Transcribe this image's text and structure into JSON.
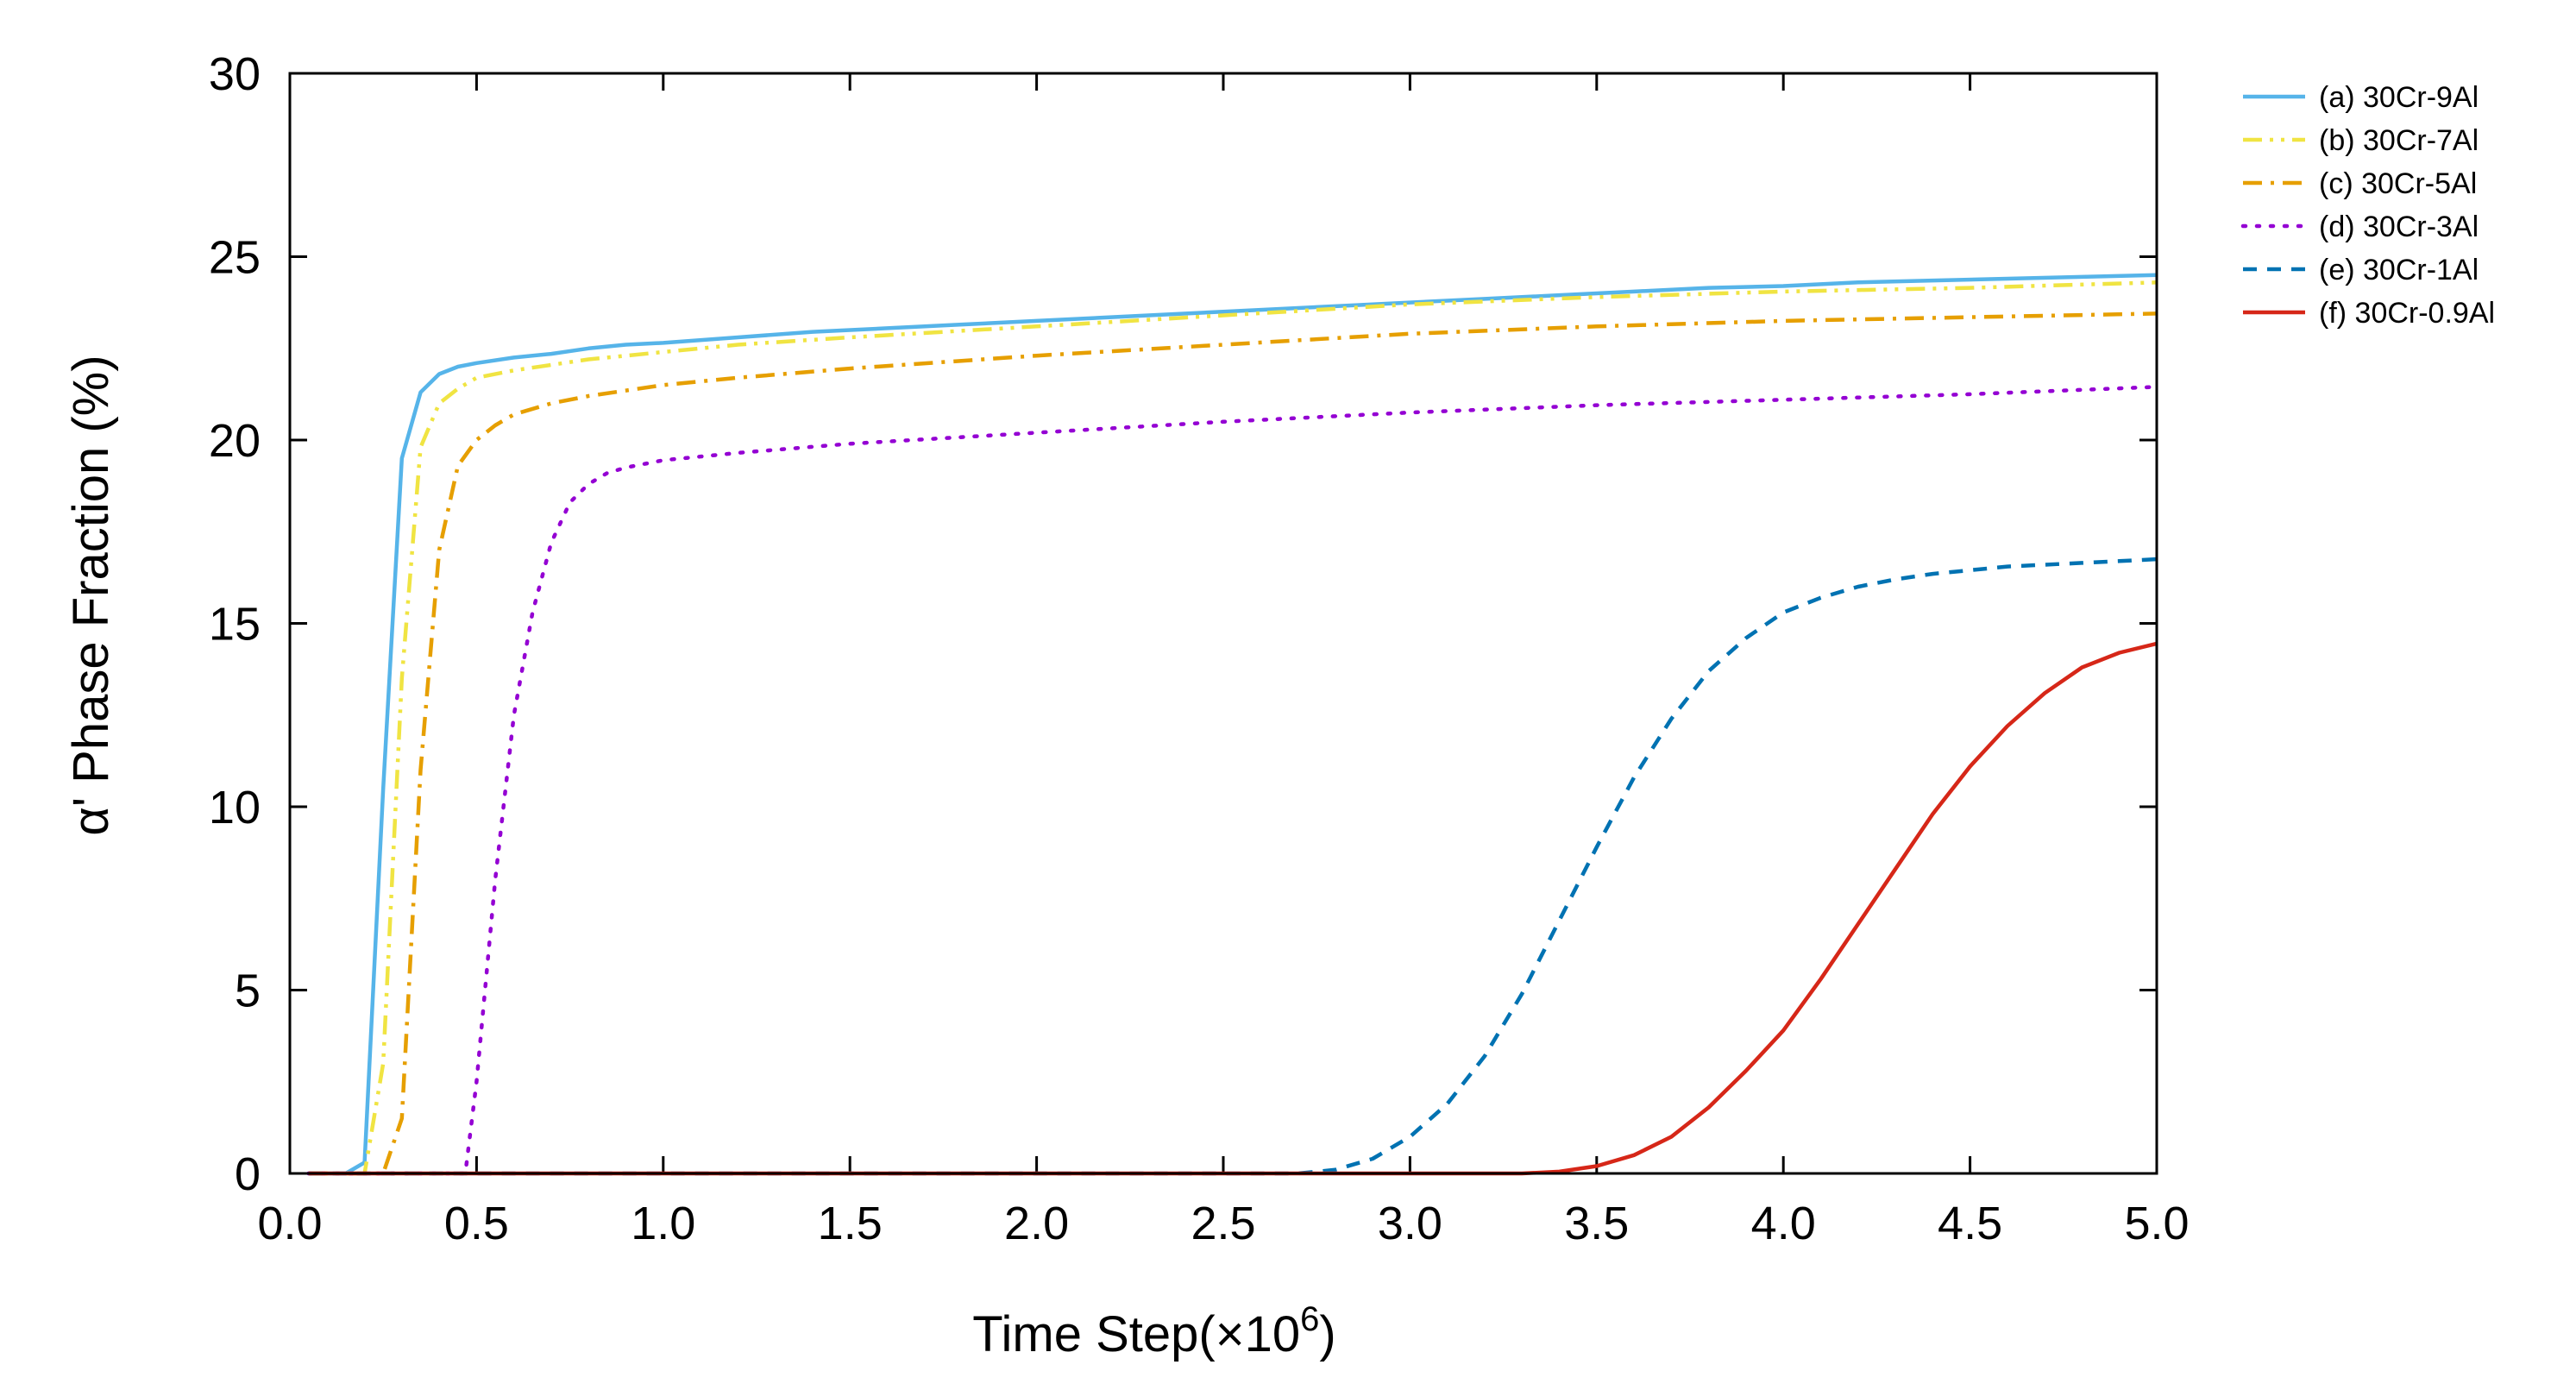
{
  "chart_data": {
    "type": "line",
    "title": "",
    "xlabel": "Time Step(×10",
    "xlabel_exponent": "6",
    "xlabel_close": ")",
    "ylabel": "α' Phase Fraction (%)",
    "xlim": [
      0.0,
      5.0
    ],
    "ylim": [
      0,
      30
    ],
    "xticks": [
      0.0,
      0.5,
      1.0,
      1.5,
      2.0,
      2.5,
      3.0,
      3.5,
      4.0,
      4.5,
      5.0
    ],
    "xtick_labels": [
      "0.0",
      "0.5",
      "1.0",
      "1.5",
      "2.0",
      "2.5",
      "3.0",
      "3.5",
      "4.0",
      "4.5",
      "5.0"
    ],
    "yticks": [
      0,
      5,
      10,
      15,
      20,
      25,
      30
    ],
    "ytick_labels": [
      "0",
      "5",
      "10",
      "15",
      "20",
      "25",
      "30"
    ],
    "grid": false,
    "legend_position": "outside-top-right",
    "series": [
      {
        "name": "(a) 30Cr-9Al",
        "color": "#56B4E9",
        "style": "solid",
        "x": [
          0.05,
          0.15,
          0.2,
          0.25,
          0.3,
          0.35,
          0.4,
          0.45,
          0.5,
          0.6,
          0.7,
          0.8,
          0.9,
          1.0,
          1.2,
          1.4,
          1.6,
          1.8,
          2.0,
          2.2,
          2.4,
          2.6,
          2.8,
          3.0,
          3.2,
          3.4,
          3.6,
          3.8,
          4.0,
          4.2,
          4.4,
          4.6,
          4.8,
          5.0
        ],
        "y": [
          0,
          0,
          0.3,
          10.5,
          19.5,
          21.3,
          21.8,
          22.0,
          22.1,
          22.25,
          22.35,
          22.5,
          22.6,
          22.65,
          22.8,
          22.95,
          23.05,
          23.15,
          23.25,
          23.35,
          23.45,
          23.55,
          23.65,
          23.75,
          23.85,
          23.95,
          24.05,
          24.15,
          24.2,
          24.3,
          24.35,
          24.4,
          24.45,
          24.5
        ]
      },
      {
        "name": "(b) 30Cr-7Al",
        "color": "#F0E442",
        "style": "dash-dot-dot",
        "x": [
          0.05,
          0.2,
          0.25,
          0.3,
          0.35,
          0.4,
          0.45,
          0.5,
          0.6,
          0.7,
          0.8,
          1.0,
          1.2,
          1.5,
          2.0,
          2.5,
          3.0,
          3.5,
          4.0,
          4.5,
          5.0
        ],
        "y": [
          0,
          0,
          3.0,
          13.5,
          19.8,
          21.0,
          21.4,
          21.7,
          21.9,
          22.05,
          22.2,
          22.4,
          22.6,
          22.8,
          23.1,
          23.4,
          23.7,
          23.9,
          24.05,
          24.15,
          24.3
        ]
      },
      {
        "name": "(c) 30Cr-5Al",
        "color": "#E69F00",
        "style": "dash-dot",
        "x": [
          0.05,
          0.25,
          0.3,
          0.35,
          0.4,
          0.45,
          0.5,
          0.55,
          0.6,
          0.7,
          0.8,
          1.0,
          1.2,
          1.5,
          2.0,
          2.5,
          3.0,
          3.5,
          4.0,
          4.5,
          5.0
        ],
        "y": [
          0,
          0,
          1.5,
          11.0,
          17.0,
          19.3,
          20.0,
          20.4,
          20.7,
          21.0,
          21.2,
          21.5,
          21.7,
          21.95,
          22.3,
          22.6,
          22.9,
          23.1,
          23.25,
          23.35,
          23.45
        ]
      },
      {
        "name": "(d) 30Cr-3Al",
        "color": "#9400D3",
        "style": "dotted",
        "x": [
          0.05,
          0.47,
          0.5,
          0.55,
          0.6,
          0.65,
          0.7,
          0.75,
          0.8,
          0.85,
          0.9,
          1.0,
          1.2,
          1.5,
          2.0,
          2.5,
          3.0,
          3.5,
          4.0,
          4.5,
          5.0
        ],
        "y": [
          0,
          0,
          2.5,
          8.0,
          12.5,
          15.3,
          17.2,
          18.3,
          18.8,
          19.1,
          19.25,
          19.45,
          19.65,
          19.9,
          20.2,
          20.5,
          20.75,
          20.95,
          21.1,
          21.25,
          21.45
        ]
      },
      {
        "name": "(e) 30Cr-1Al",
        "color": "#0072B2",
        "style": "dashed",
        "x": [
          0.05,
          2.7,
          2.8,
          2.9,
          3.0,
          3.1,
          3.2,
          3.3,
          3.4,
          3.5,
          3.6,
          3.7,
          3.8,
          3.9,
          4.0,
          4.1,
          4.2,
          4.3,
          4.4,
          4.5,
          4.6,
          4.7,
          4.8,
          4.9,
          5.0
        ],
        "y": [
          0,
          0,
          0.1,
          0.4,
          1.0,
          1.9,
          3.2,
          4.9,
          6.9,
          8.9,
          10.8,
          12.4,
          13.7,
          14.6,
          15.3,
          15.7,
          16.0,
          16.2,
          16.35,
          16.45,
          16.55,
          16.6,
          16.65,
          16.7,
          16.75
        ]
      },
      {
        "name": "(f) 30Cr-0.9Al",
        "color": "#D62718",
        "style": "solid",
        "x": [
          0.05,
          3.3,
          3.4,
          3.5,
          3.6,
          3.7,
          3.8,
          3.9,
          4.0,
          4.1,
          4.2,
          4.3,
          4.4,
          4.5,
          4.6,
          4.7,
          4.8,
          4.9,
          5.0
        ],
        "y": [
          0,
          0,
          0.05,
          0.2,
          0.5,
          1.0,
          1.8,
          2.8,
          3.9,
          5.3,
          6.8,
          8.3,
          9.8,
          11.1,
          12.2,
          13.1,
          13.8,
          14.2,
          14.45
        ]
      }
    ]
  }
}
